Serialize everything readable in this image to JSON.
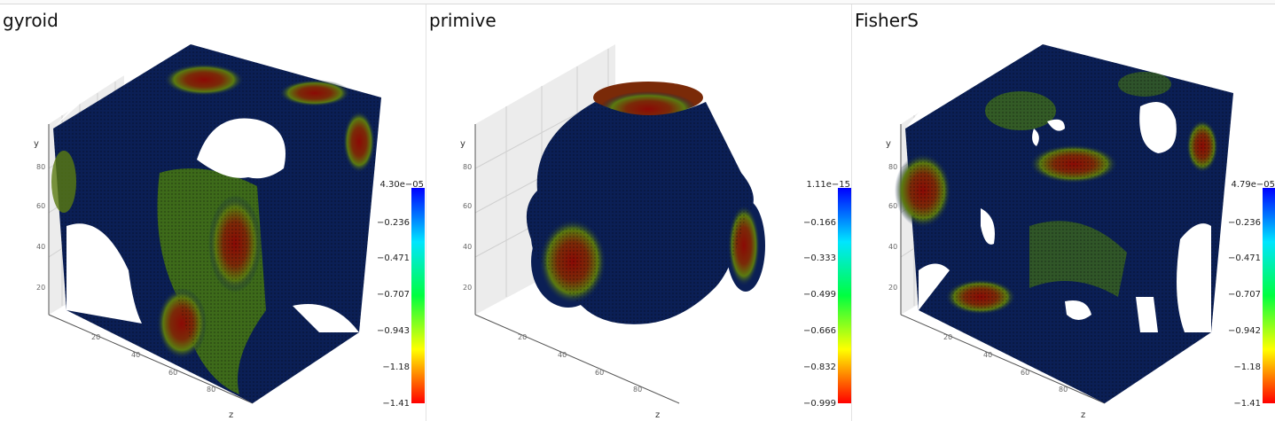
{
  "panels": [
    {
      "title": "gyroid",
      "axis_labels": {
        "y": "y",
        "x": "z"
      },
      "y_ticks": [
        "20",
        "40",
        "60",
        "80"
      ],
      "x_ticks": [
        "20",
        "40",
        "60",
        "80"
      ],
      "colorbar": [
        "4.30e−05",
        "−0.236",
        "−0.471",
        "−0.707",
        "−0.943",
        "−1.18",
        "−1.41"
      ]
    },
    {
      "title": "primive",
      "axis_labels": {
        "y": "y",
        "x": "z"
      },
      "y_ticks": [
        "20",
        "40",
        "60",
        "80"
      ],
      "x_ticks": [
        "20",
        "40",
        "60",
        "80"
      ],
      "colorbar": [
        "1.11e−15",
        "−0.166",
        "−0.333",
        "−0.499",
        "−0.666",
        "−0.832",
        "−0.999"
      ]
    },
    {
      "title": "FisherS",
      "axis_labels": {
        "y": "y",
        "x": "z"
      },
      "y_ticks": [
        "20",
        "40",
        "60",
        "80"
      ],
      "x_ticks": [
        "20",
        "40",
        "60",
        "80"
      ],
      "colorbar": [
        "4.79e−05",
        "−0.236",
        "−0.471",
        "−0.707",
        "−0.942",
        "−1.18",
        "−1.41"
      ]
    }
  ],
  "colors": {
    "surface": "#0b1f55",
    "hot": "#8b0a05",
    "warm": "#7a9a10",
    "grid": "#cfcfcf",
    "wall": "#ececec",
    "colormap": [
      "#0000ff",
      "#00e5ff",
      "#00ff40",
      "#ffff00",
      "#ff0000"
    ]
  }
}
